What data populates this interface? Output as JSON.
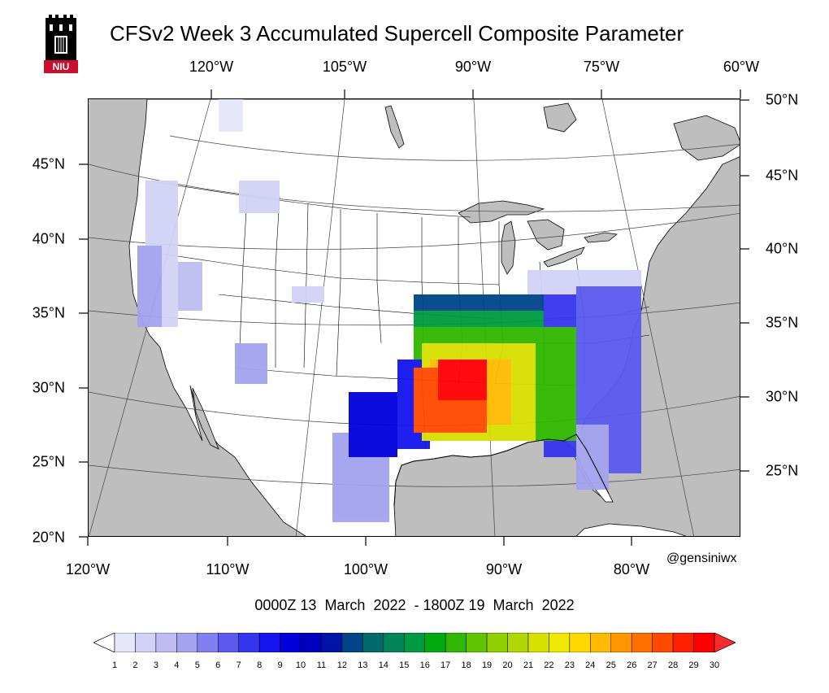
{
  "logo": {
    "text": "NIU",
    "color": "#c8102e"
  },
  "title": "CFSv2 Week 3 Accumulated Supercell Composite Parameter",
  "top_lon_labels": [
    "120°W",
    "105°W",
    "90°W",
    "75°W",
    "60°W"
  ],
  "bottom_lon_labels": [
    "120°W",
    "110°W",
    "100°W",
    "90°W",
    "80°W"
  ],
  "left_lat_labels": [
    "45°N",
    "40°N",
    "35°N",
    "30°N",
    "25°N",
    "20°N"
  ],
  "right_lat_labels": [
    "50°N",
    "45°N",
    "40°N",
    "35°N",
    "30°N",
    "25°N"
  ],
  "credit": "@gensiniwx",
  "date_range": "0000Z 13  March  2022  - 1800Z 19  March  2022",
  "colorbar": {
    "labels": [
      "1",
      "2",
      "3",
      "4",
      "5",
      "6",
      "7",
      "8",
      "9",
      "10",
      "11",
      "12",
      "13",
      "14",
      "15",
      "16",
      "17",
      "18",
      "19",
      "20",
      "21",
      "22",
      "23",
      "24",
      "25",
      "26",
      "27",
      "28",
      "29",
      "30"
    ],
    "colors": [
      "#ffffff",
      "#e6e6fb",
      "#d2d2f7",
      "#bdbdf3",
      "#a3a3ef",
      "#8080f0",
      "#5a5af0",
      "#3535f0",
      "#1414ee",
      "#0000dd",
      "#0000c0",
      "#0015a8",
      "#00448a",
      "#006a6a",
      "#00855a",
      "#009a40",
      "#00aa10",
      "#30b800",
      "#60c400",
      "#90d000",
      "#b0d800",
      "#d8e000",
      "#f0e800",
      "#ffd800",
      "#ffba00",
      "#ff9600",
      "#ff7000",
      "#ff4800",
      "#ff2000",
      "#ff0000",
      "#ff2a2a"
    ]
  },
  "colors": {
    "land": "#ffffff",
    "water": "#bebebe",
    "border": "#000000"
  }
}
